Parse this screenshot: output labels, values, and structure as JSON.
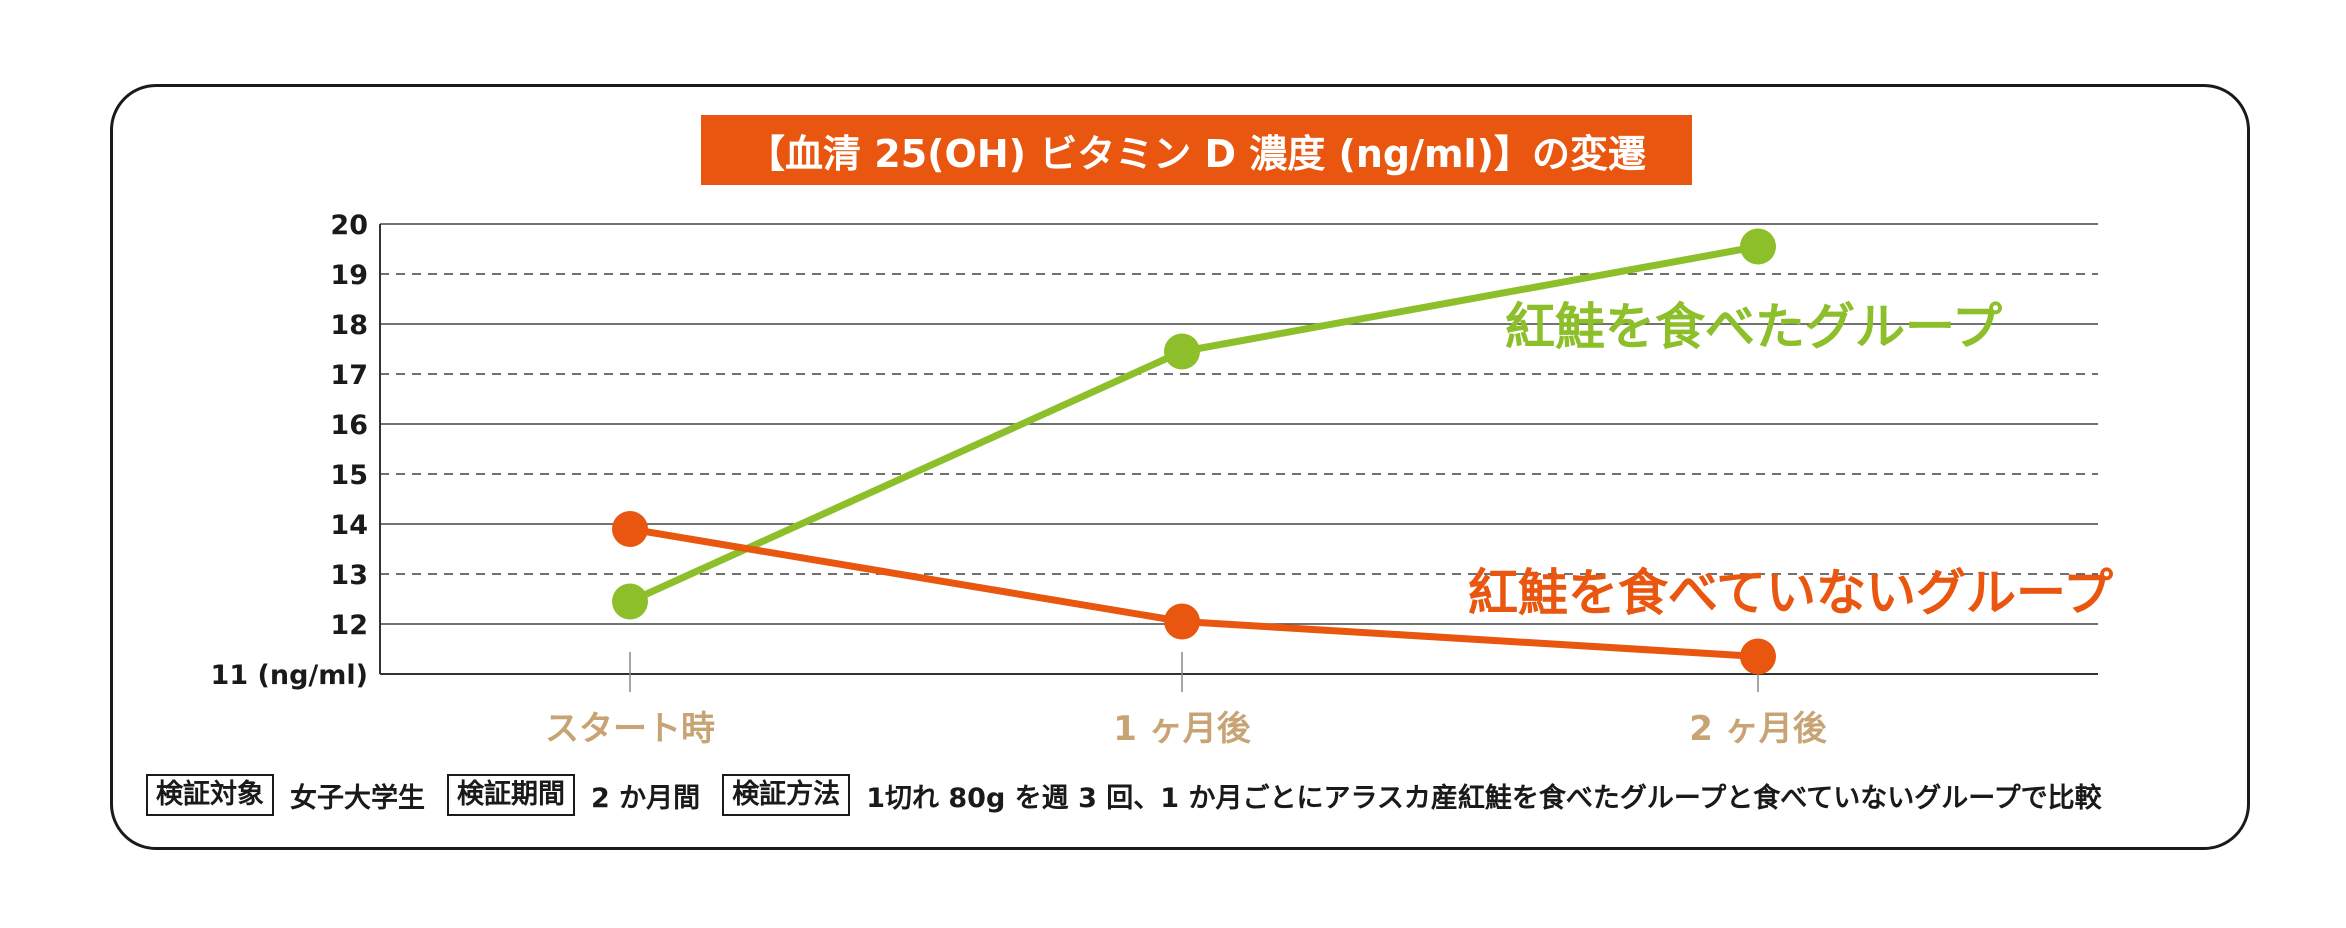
{
  "chart_data": {
    "type": "line",
    "title": "【血清 25(OH) ビタミン D 濃度 (ng/ml)】の変遷",
    "categories": [
      "スタート時",
      "1 ヶ月後",
      "2 ヶ月後"
    ],
    "y_ticks": [
      "20",
      "19",
      "18",
      "17",
      "16",
      "15",
      "14",
      "13",
      "12",
      "11 (ng/ml)"
    ],
    "ylim": [
      11,
      20
    ],
    "grid": true,
    "series": [
      {
        "name": "紅鮭を食べたグループ",
        "color": "#8cbf2a",
        "values": [
          12.45,
          17.45,
          19.55
        ]
      },
      {
        "name": "紅鮭を食べていないグループ",
        "color": "#e8560f",
        "values": [
          13.9,
          12.05,
          11.35
        ]
      }
    ]
  },
  "footer": {
    "subject_label": "検証対象",
    "subject_value": "女子大学生",
    "period_label": "検証期間",
    "period_value": "2 か月間",
    "method_label": "検証方法",
    "method_value": "1切れ 80g を週 3 回、1 か月ごとにアラスカ産紅鮭を食べたグループと食べていないグループで比較"
  },
  "colors": {
    "axis_label": "#c8a374",
    "grid": "#444444",
    "text": "#1a1a1a"
  }
}
